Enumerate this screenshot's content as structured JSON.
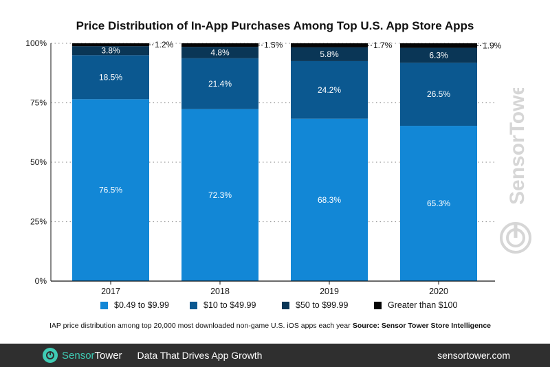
{
  "chart_data": {
    "type": "bar",
    "stacked": true,
    "title": "Price Distribution of In-App Purchases Among Top U.S. App Store Apps",
    "categories": [
      "2017",
      "2018",
      "2019",
      "2020"
    ],
    "series": [
      {
        "name": "$0.49 to $9.99",
        "values": [
          76.5,
          72.3,
          68.3,
          65.3
        ],
        "labels": [
          "76.5%",
          "72.3%",
          "68.3%",
          "65.3%"
        ],
        "color": "#1287d6"
      },
      {
        "name": "$10 to $49.99",
        "values": [
          18.5,
          21.4,
          24.2,
          26.5
        ],
        "labels": [
          "18.5%",
          "21.4%",
          "24.2%",
          "26.5%"
        ],
        "color": "#0b5890"
      },
      {
        "name": "$50 to $99.99",
        "values": [
          3.8,
          4.8,
          5.8,
          6.3
        ],
        "labels": [
          "3.8%",
          "4.8%",
          "5.8%",
          "6.3%"
        ],
        "color": "#0a3656"
      },
      {
        "name": "Greater than $100",
        "values": [
          1.2,
          1.5,
          1.7,
          1.9
        ],
        "labels": [
          "1.2%",
          "1.5%",
          "1.7%",
          "1.9%"
        ],
        "color": "#050505"
      }
    ],
    "yticks": [
      "0%",
      "25%",
      "50%",
      "75%",
      "100%"
    ],
    "ylim": [
      0,
      100
    ],
    "grid": true,
    "legend_position": "bottom"
  },
  "caption": "IAP price distribution among top 20,000 most downloaded non-game U.S. iOS apps each year",
  "source": "Source: Sensor Tower Store Intelligence",
  "watermark": "SensorTower",
  "footer": {
    "brand_part1": "Sensor",
    "brand_part2": "Tower",
    "tagline": "Data That Drives App Growth",
    "url": "sensortower.com",
    "bg_color": "#2f2f2f",
    "accent_color": "#3fcbb4"
  }
}
